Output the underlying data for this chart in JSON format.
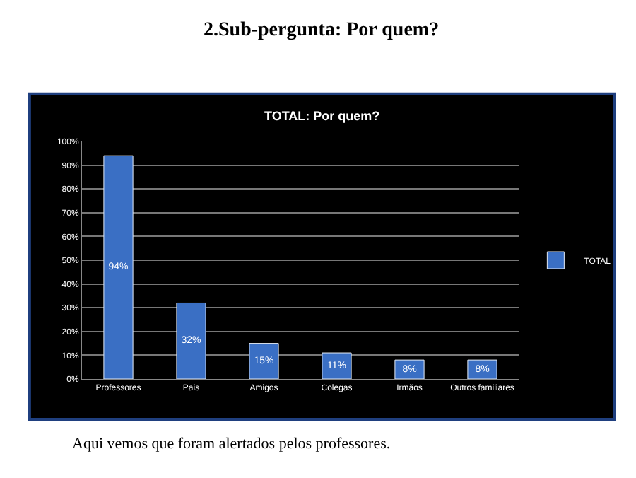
{
  "chart_data": {
    "type": "bar",
    "title": "2.Sub-pergunta: Por quem?",
    "subtitle": "TOTAL: Por quem?",
    "categories": [
      "Professores",
      "Pais",
      "Amigos",
      "Colegas",
      "Irmãos",
      "Outros familiares"
    ],
    "series": [
      {
        "name": "TOTAL",
        "color": "#3a6fc4",
        "values": [
          94,
          32,
          15,
          11,
          8,
          8
        ],
        "value_labels": [
          "94%",
          "32%",
          "15%",
          "11%",
          "8%",
          "8%"
        ]
      }
    ],
    "ylim": [
      0,
      100
    ],
    "yticks": [
      {
        "value": 0,
        "label": "0%"
      },
      {
        "value": 10,
        "label": "10%"
      },
      {
        "value": 20,
        "label": "20%"
      },
      {
        "value": 30,
        "label": "30%"
      },
      {
        "value": 40,
        "label": "40%"
      },
      {
        "value": 50,
        "label": "50%"
      },
      {
        "value": 60,
        "label": "60%"
      },
      {
        "value": 70,
        "label": "70%"
      },
      {
        "value": 80,
        "label": "80%"
      },
      {
        "value": 90,
        "label": "90%"
      },
      {
        "value": 100,
        "label": "100%"
      }
    ],
    "grid": "y",
    "legend": "right",
    "annotations": [
      "Aqui vemos que foram alertados pelos professores."
    ]
  }
}
